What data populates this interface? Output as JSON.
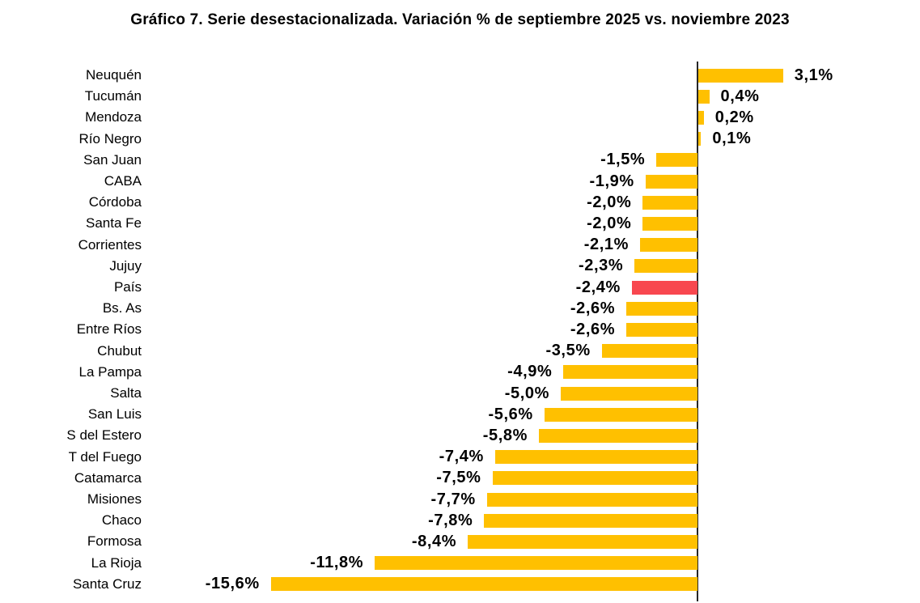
{
  "title": "Gráfico 7. Serie desestacionalizada. Variación % de septiembre 2025 vs. noviembre 2023",
  "chart_data": {
    "type": "bar",
    "orientation": "horizontal",
    "title": "Gráfico 7. Serie desestacionalizada. Variación % de septiembre 2025 vs. noviembre 2023",
    "xlabel": "",
    "ylabel": "",
    "axis_range": [
      -16.5,
      3.5
    ],
    "grid": false,
    "legend": false,
    "zero_line": true,
    "categories": [
      "Neuquén",
      "Tucumán",
      "Mendoza",
      "Río Negro",
      "San Juan",
      "CABA",
      "Córdoba",
      "Santa Fe",
      "Corrientes",
      "Jujuy",
      "País",
      "Bs. As",
      "Entre Ríos",
      "Chubut",
      "La Pampa",
      "Salta",
      "San Luis",
      "S del Estero",
      "T del Fuego",
      "Catamarca",
      "Misiones",
      "Chaco",
      "Formosa",
      "La Rioja",
      "Santa Cruz"
    ],
    "values": [
      3.1,
      0.4,
      0.2,
      0.1,
      -1.5,
      -1.9,
      -2.0,
      -2.0,
      -2.1,
      -2.3,
      -2.4,
      -2.6,
      -2.6,
      -3.5,
      -4.9,
      -5.0,
      -5.6,
      -5.8,
      -7.4,
      -7.5,
      -7.7,
      -7.8,
      -8.4,
      -11.8,
      -15.6
    ],
    "value_labels": [
      "3,1%",
      "0,4%",
      "0,2%",
      "0,1%",
      "-1,5%",
      "-1,9%",
      "-2,0%",
      "-2,0%",
      "-2,1%",
      "-2,3%",
      "-2,4%",
      "-2,6%",
      "-2,6%",
      "-3,5%",
      "-4,9%",
      "-5,0%",
      "-5,6%",
      "-5,8%",
      "-7,4%",
      "-7,5%",
      "-7,7%",
      "-7,8%",
      "-8,4%",
      "-11,8%",
      "-15,6%"
    ],
    "highlight": {
      "category": "País",
      "index": 10,
      "color": "#F8474F"
    },
    "colors": {
      "bar": "#FFC000",
      "highlight": "#F8474F",
      "axis_line": "#262626",
      "text": "#000000"
    }
  }
}
